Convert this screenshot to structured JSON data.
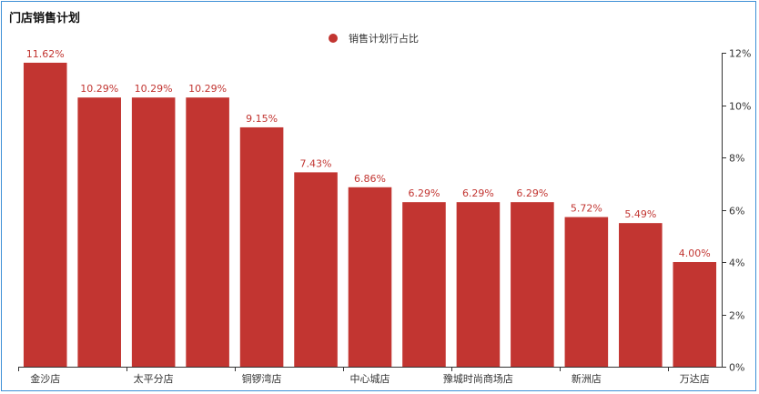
{
  "window": {
    "title": "门店销售计划"
  },
  "colors": {
    "bar": "#c23531",
    "axis": "#333333",
    "frame": "#3d8fd6"
  },
  "chart_data": {
    "type": "bar",
    "title": "门店销售计划",
    "legend": {
      "position": "top-center",
      "entries": [
        "销售计划行占比"
      ]
    },
    "categories": [
      "金沙店",
      "",
      "太平分店",
      "",
      "铜锣湾店",
      "",
      "中心城店",
      "",
      "豫城时尚商场店",
      "",
      "新洲店",
      "",
      "万达店"
    ],
    "series": [
      {
        "name": "销售计划行占比",
        "values": [
          11.62,
          10.29,
          10.29,
          10.29,
          9.15,
          7.43,
          6.86,
          6.29,
          6.29,
          6.29,
          5.72,
          5.49,
          4.0
        ],
        "labels": [
          "11.62%",
          "10.29%",
          "10.29%",
          "10.29%",
          "9.15%",
          "7.43%",
          "6.86%",
          "6.29%",
          "6.29%",
          "6.29%",
          "5.72%",
          "5.49%",
          "4.00%"
        ]
      }
    ],
    "y_axis": {
      "position": "right",
      "ylim": [
        0,
        12
      ],
      "ticks": [
        0,
        2,
        4,
        6,
        8,
        10,
        12
      ],
      "tick_labels": [
        "0%",
        "2%",
        "4%",
        "6%",
        "8%",
        "10%",
        "12%"
      ]
    },
    "grid": false
  }
}
